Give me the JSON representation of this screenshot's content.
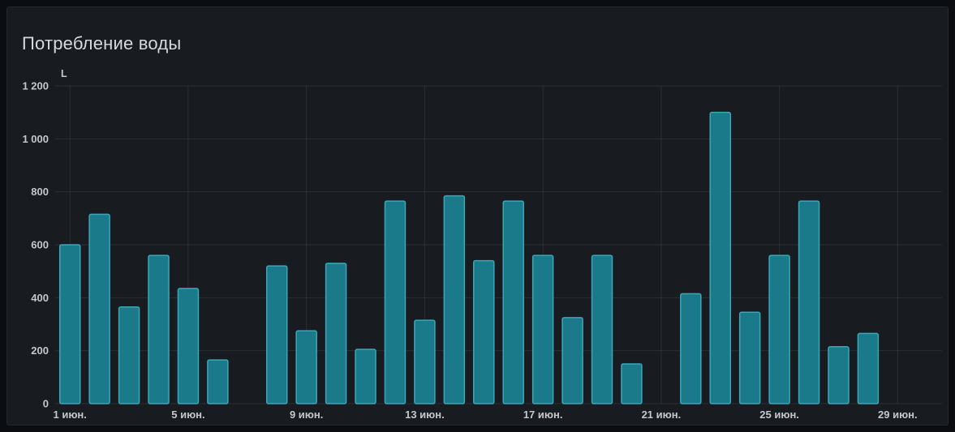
{
  "page": {
    "background": "#0c0d10",
    "panel_background": "#181b1f"
  },
  "panel": {
    "title": "Потребление воды"
  },
  "chart_data": {
    "type": "bar",
    "title": "Потребление воды",
    "unit_label": "L",
    "xlabel": "",
    "ylabel": "L",
    "ylim": [
      0,
      1200
    ],
    "grid": true,
    "legend": "none",
    "categories": [
      1,
      2,
      3,
      4,
      5,
      6,
      7,
      8,
      9,
      10,
      11,
      12,
      13,
      14,
      15,
      16,
      17,
      18,
      19,
      20,
      21,
      22,
      23,
      24,
      25,
      26,
      27,
      28,
      29,
      30
    ],
    "values": [
      600,
      715,
      365,
      560,
      435,
      165,
      null,
      520,
      275,
      530,
      205,
      765,
      315,
      785,
      540,
      765,
      560,
      325,
      560,
      150,
      null,
      415,
      1100,
      345,
      560,
      765,
      215,
      265,
      null,
      null
    ],
    "y_ticks": [
      {
        "value": 0,
        "label": "0"
      },
      {
        "value": 200,
        "label": "200"
      },
      {
        "value": 400,
        "label": "400"
      },
      {
        "value": 600,
        "label": "600"
      },
      {
        "value": 800,
        "label": "800"
      },
      {
        "value": 1000,
        "label": "1 000"
      },
      {
        "value": 1200,
        "label": "1 200"
      }
    ],
    "x_ticks": [
      {
        "day": 1,
        "label": "1 июн."
      },
      {
        "day": 5,
        "label": "5 июн."
      },
      {
        "day": 9,
        "label": "9 июн."
      },
      {
        "day": 13,
        "label": "13 июн."
      },
      {
        "day": 17,
        "label": "17 июн."
      },
      {
        "day": 21,
        "label": "21 июн."
      },
      {
        "day": 25,
        "label": "25 июн."
      },
      {
        "day": 29,
        "label": "29 июн."
      }
    ],
    "bar_fill": "#1b7a8a",
    "bar_stroke": "#3aa7b7",
    "grid_color": "rgba(204,204,220,0.10)",
    "tick_color": "#c6c7cc"
  }
}
